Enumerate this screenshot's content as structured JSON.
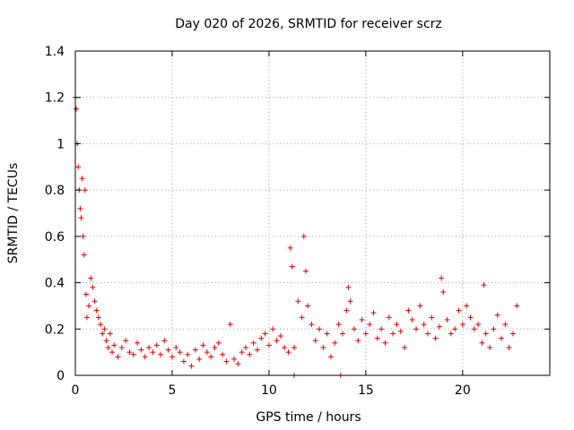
{
  "chart_data": {
    "type": "scatter",
    "title": "Day 020 of 2026, SRMTID for receiver scrz",
    "xlabel": "GPS time / hours",
    "ylabel": "SRMTID / TECUs",
    "xlim": [
      0,
      24.5
    ],
    "ylim": [
      0,
      1.4
    ],
    "xticks": [
      0,
      5,
      10,
      15,
      20
    ],
    "yticks": [
      0,
      0.2,
      0.4,
      0.6,
      0.8,
      1,
      1.2,
      1.4
    ],
    "ytick_labels": [
      "0",
      "0.2",
      "0.4",
      "0.6",
      "0.8",
      "1",
      "1.2",
      "1.4"
    ],
    "grid": true,
    "marker": "+",
    "color": "#e00000",
    "series": [
      {
        "name": "SRMTID",
        "x": [
          0.0,
          0.05,
          0.1,
          0.15,
          0.2,
          0.25,
          0.3,
          0.35,
          0.4,
          0.45,
          0.5,
          0.55,
          0.6,
          0.7,
          0.8,
          0.9,
          1.0,
          1.1,
          1.2,
          1.3,
          1.4,
          1.5,
          1.6,
          1.7,
          1.8,
          1.9,
          2.0,
          2.2,
          2.4,
          2.6,
          2.8,
          3.0,
          3.2,
          3.4,
          3.6,
          3.8,
          4.0,
          4.2,
          4.4,
          4.6,
          4.8,
          5.0,
          5.2,
          5.4,
          5.6,
          5.8,
          6.0,
          6.2,
          6.4,
          6.6,
          6.8,
          7.0,
          7.2,
          7.4,
          7.6,
          7.8,
          8.0,
          8.2,
          8.4,
          8.6,
          8.8,
          9.0,
          9.2,
          9.4,
          9.6,
          9.8,
          10.0,
          10.2,
          10.4,
          10.6,
          10.8,
          11.0,
          11.1,
          11.2,
          11.3,
          11.5,
          11.7,
          11.8,
          11.9,
          12.0,
          12.2,
          12.4,
          12.6,
          12.8,
          13.0,
          13.2,
          13.4,
          13.6,
          13.8,
          14.0,
          14.1,
          14.2,
          14.4,
          14.6,
          14.8,
          15.0,
          15.2,
          15.4,
          15.6,
          15.8,
          16.0,
          16.2,
          16.4,
          16.6,
          16.8,
          17.0,
          17.2,
          17.4,
          17.6,
          17.8,
          18.0,
          18.2,
          18.4,
          18.6,
          18.8,
          18.9,
          19.0,
          19.2,
          19.4,
          19.6,
          19.8,
          20.0,
          20.2,
          20.4,
          20.6,
          20.8,
          21.0,
          21.1,
          21.2,
          21.4,
          21.6,
          21.8,
          22.0,
          22.2,
          22.4,
          22.6,
          22.8,
          11.3,
          13.7
        ],
        "y": [
          1.2,
          1.15,
          1.0,
          0.9,
          0.8,
          0.72,
          0.68,
          0.85,
          0.6,
          0.52,
          0.8,
          0.35,
          0.25,
          0.3,
          0.42,
          0.38,
          0.32,
          0.28,
          0.25,
          0.22,
          0.18,
          0.2,
          0.15,
          0.12,
          0.18,
          0.1,
          0.13,
          0.08,
          0.12,
          0.15,
          0.1,
          0.09,
          0.14,
          0.11,
          0.08,
          0.12,
          0.1,
          0.13,
          0.09,
          0.15,
          0.11,
          0.08,
          0.12,
          0.1,
          0.06,
          0.09,
          0.04,
          0.11,
          0.07,
          0.13,
          0.1,
          0.08,
          0.12,
          0.14,
          0.09,
          0.06,
          0.22,
          0.07,
          0.05,
          0.1,
          0.12,
          0.09,
          0.14,
          0.11,
          0.16,
          0.18,
          0.13,
          0.2,
          0.15,
          0.17,
          0.12,
          0.1,
          0.55,
          0.47,
          0.12,
          0.32,
          0.25,
          0.6,
          0.45,
          0.3,
          0.22,
          0.15,
          0.2,
          0.12,
          0.18,
          0.08,
          0.14,
          0.22,
          0.18,
          0.28,
          0.38,
          0.32,
          0.2,
          0.15,
          0.24,
          0.18,
          0.22,
          0.27,
          0.16,
          0.2,
          0.14,
          0.25,
          0.18,
          0.22,
          0.19,
          0.12,
          0.28,
          0.24,
          0.2,
          0.3,
          0.22,
          0.18,
          0.25,
          0.16,
          0.21,
          0.42,
          0.36,
          0.24,
          0.18,
          0.2,
          0.28,
          0.22,
          0.3,
          0.25,
          0.2,
          0.22,
          0.14,
          0.39,
          0.18,
          0.12,
          0.2,
          0.26,
          0.16,
          0.22,
          0.12,
          0.18,
          0.3,
          0.0,
          0.0
        ]
      }
    ]
  }
}
